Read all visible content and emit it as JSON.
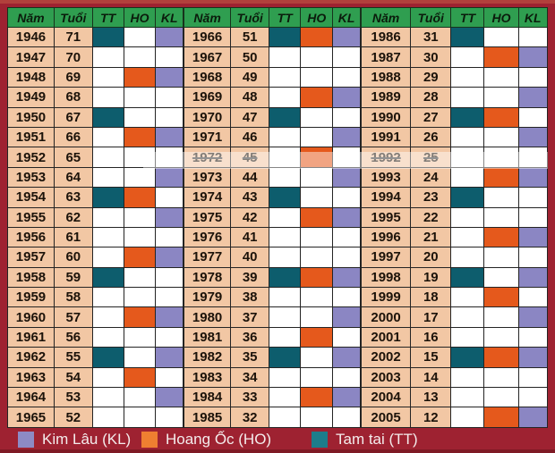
{
  "colors": {
    "background": "#9e2231",
    "background_top_edge": "#b2403c",
    "background_bottom_edge": "#7f1a25",
    "header_bg": "#2f9e50",
    "header_text": "#0b1c0c",
    "year_cell_bg": "#f2c7a4",
    "empty_cell_bg": "#ffffff",
    "grid_line": "#242424",
    "tam_tai": "#0d5d6d",
    "hoang_oc": "#e5591c",
    "kim_lau": "#8b86c3",
    "legend_text": "#f4ecec",
    "legend_swatch_kim_lau": "#8d8ac5",
    "legend_swatch_hoang_oc": "#ef7f31",
    "legend_swatch_tam_tai": "#1d7d8b"
  },
  "chart_data": {
    "type": "table",
    "columns": [
      "Năm",
      "Tuổi",
      "TT",
      "HO",
      "KL"
    ],
    "column_keys": [
      "year",
      "age",
      "tt",
      "ho",
      "kl"
    ],
    "legend": [
      {
        "key": "KL",
        "label": "Kim Lâu (KL)"
      },
      {
        "key": "HO",
        "label": "Hoang Ốc (HO)"
      },
      {
        "key": "TT",
        "label": "Tam tai (TT)"
      }
    ],
    "struck_years": [
      1972,
      1992
    ],
    "blocks": [
      {
        "rows": [
          [
            1946,
            71,
            1,
            0,
            1
          ],
          [
            1947,
            70,
            0,
            0,
            0
          ],
          [
            1948,
            69,
            0,
            1,
            1
          ],
          [
            1949,
            68,
            0,
            0,
            0
          ],
          [
            1950,
            67,
            1,
            0,
            0
          ],
          [
            1951,
            66,
            0,
            1,
            1
          ],
          [
            1952,
            65,
            0,
            0,
            0
          ],
          [
            1953,
            64,
            0,
            0,
            1
          ],
          [
            1954,
            63,
            1,
            1,
            0
          ],
          [
            1955,
            62,
            0,
            0,
            1
          ],
          [
            1956,
            61,
            0,
            0,
            0
          ],
          [
            1957,
            60,
            0,
            1,
            1
          ],
          [
            1958,
            59,
            1,
            0,
            0
          ],
          [
            1959,
            58,
            0,
            0,
            0
          ],
          [
            1960,
            57,
            0,
            1,
            1
          ],
          [
            1961,
            56,
            0,
            0,
            0
          ],
          [
            1962,
            55,
            1,
            0,
            1
          ],
          [
            1963,
            54,
            0,
            1,
            0
          ],
          [
            1964,
            53,
            0,
            0,
            1
          ],
          [
            1965,
            52,
            0,
            0,
            0
          ]
        ]
      },
      {
        "rows": [
          [
            1966,
            51,
            1,
            1,
            1
          ],
          [
            1967,
            50,
            0,
            0,
            0
          ],
          [
            1968,
            49,
            0,
            0,
            0
          ],
          [
            1969,
            48,
            0,
            1,
            1
          ],
          [
            1970,
            47,
            1,
            0,
            0
          ],
          [
            1971,
            46,
            0,
            0,
            1
          ],
          [
            1972,
            45,
            0,
            1,
            0
          ],
          [
            1973,
            44,
            0,
            0,
            1
          ],
          [
            1974,
            43,
            1,
            0,
            0
          ],
          [
            1975,
            42,
            0,
            1,
            1
          ],
          [
            1976,
            41,
            0,
            0,
            0
          ],
          [
            1977,
            40,
            0,
            0,
            0
          ],
          [
            1978,
            39,
            1,
            1,
            1
          ],
          [
            1979,
            38,
            0,
            0,
            0
          ],
          [
            1980,
            37,
            0,
            0,
            1
          ],
          [
            1981,
            36,
            0,
            1,
            0
          ],
          [
            1982,
            35,
            1,
            0,
            1
          ],
          [
            1983,
            34,
            0,
            0,
            0
          ],
          [
            1984,
            33,
            0,
            1,
            1
          ],
          [
            1985,
            32,
            0,
            0,
            0
          ]
        ]
      },
      {
        "rows": [
          [
            1986,
            31,
            1,
            0,
            0
          ],
          [
            1987,
            30,
            0,
            1,
            1
          ],
          [
            1988,
            29,
            0,
            0,
            0
          ],
          [
            1989,
            28,
            0,
            0,
            1
          ],
          [
            1990,
            27,
            1,
            1,
            0
          ],
          [
            1991,
            26,
            0,
            0,
            1
          ],
          [
            1992,
            25,
            0,
            0,
            0
          ],
          [
            1993,
            24,
            0,
            1,
            1
          ],
          [
            1994,
            23,
            1,
            0,
            0
          ],
          [
            1995,
            22,
            0,
            0,
            0
          ],
          [
            1996,
            21,
            0,
            1,
            1
          ],
          [
            1997,
            20,
            0,
            0,
            0
          ],
          [
            1998,
            19,
            1,
            0,
            1
          ],
          [
            1999,
            18,
            0,
            1,
            0
          ],
          [
            2000,
            17,
            0,
            0,
            1
          ],
          [
            2001,
            16,
            0,
            0,
            0
          ],
          [
            2002,
            15,
            1,
            1,
            1
          ],
          [
            2003,
            14,
            0,
            0,
            0
          ],
          [
            2004,
            13,
            0,
            0,
            0
          ],
          [
            2005,
            12,
            0,
            1,
            1
          ]
        ]
      }
    ]
  }
}
